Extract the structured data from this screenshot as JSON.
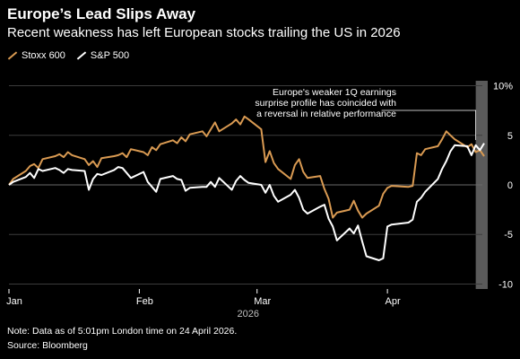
{
  "title": "Europe’s Lead Slips Away",
  "subtitle": "Recent weakness has left European stocks trailing the US in 2026",
  "note": "Note: Data as of 5:01pm London time on 24 April 2026.",
  "source": "Source: Bloomberg",
  "annotation": "Europe's weaker 1Q earnings surprise profile has coincided with a reversal in relative performance",
  "colors": {
    "stoxx": "#d99a52",
    "sp500": "#ffffff",
    "background": "#000000",
    "grid": "#3c3c3c",
    "highlight_band": "#5a5a5a"
  },
  "chart_data": {
    "type": "line",
    "title": "Europe’s Lead Slips Away",
    "subtitle": "Recent weakness has left European stocks trailing the US in 2026",
    "xlabel": "2026",
    "ylabel": "",
    "ylim": [
      -10.5,
      10.5
    ],
    "y_ticks": [
      {
        "value": 10,
        "label": "10%"
      },
      {
        "value": 5,
        "label": "5"
      },
      {
        "value": 0,
        "label": "0"
      },
      {
        "value": -5,
        "label": "-5"
      },
      {
        "value": -10,
        "label": "-10"
      }
    ],
    "x_ticks": [
      {
        "date": "2026-01-01",
        "label": "Jan"
      },
      {
        "date": "2026-02-01",
        "label": "Feb"
      },
      {
        "date": "2026-03-01",
        "label": "Mar"
      },
      {
        "date": "2026-04-01",
        "label": "Apr"
      }
    ],
    "xlim": [
      "2026-01-01",
      "2026-04-24"
    ],
    "highlight_start": "2026-04-22",
    "legend_position": "top-left",
    "grid": true,
    "series": [
      {
        "name": "Stoxx 600",
        "color": "#d99a52",
        "points": [
          [
            "2026-01-01",
            0
          ],
          [
            "2026-01-02",
            0.6
          ],
          [
            "2026-01-05",
            1.4
          ],
          [
            "2026-01-06",
            1.9
          ],
          [
            "2026-01-07",
            2.1
          ],
          [
            "2026-01-08",
            1.7
          ],
          [
            "2026-01-09",
            2.6
          ],
          [
            "2026-01-12",
            2.9
          ],
          [
            "2026-01-13",
            3.1
          ],
          [
            "2026-01-14",
            2.8
          ],
          [
            "2026-01-15",
            3.3
          ],
          [
            "2026-01-16",
            3.0
          ],
          [
            "2026-01-19",
            2.6
          ],
          [
            "2026-01-20",
            2.0
          ],
          [
            "2026-01-21",
            2.4
          ],
          [
            "2026-01-22",
            1.8
          ],
          [
            "2026-01-23",
            2.7
          ],
          [
            "2026-01-26",
            2.9
          ],
          [
            "2026-01-27",
            3.0
          ],
          [
            "2026-01-28",
            3.2
          ],
          [
            "2026-01-29",
            2.8
          ],
          [
            "2026-01-30",
            3.6
          ],
          [
            "2026-02-02",
            3.3
          ],
          [
            "2026-02-03",
            3.0
          ],
          [
            "2026-02-04",
            3.8
          ],
          [
            "2026-02-05",
            3.5
          ],
          [
            "2026-02-06",
            4.1
          ],
          [
            "2026-02-09",
            4.5
          ],
          [
            "2026-02-10",
            4.2
          ],
          [
            "2026-02-11",
            4.8
          ],
          [
            "2026-02-12",
            4.4
          ],
          [
            "2026-02-13",
            5.1
          ],
          [
            "2026-02-16",
            5.4
          ],
          [
            "2026-02-17",
            4.9
          ],
          [
            "2026-02-18",
            5.6
          ],
          [
            "2026-02-19",
            6.3
          ],
          [
            "2026-02-20",
            5.4
          ],
          [
            "2026-02-23",
            6.2
          ],
          [
            "2026-02-24",
            6.6
          ],
          [
            "2026-02-25",
            6.1
          ],
          [
            "2026-02-26",
            6.9
          ],
          [
            "2026-02-27",
            6.6
          ],
          [
            "2026-03-02",
            5.6
          ],
          [
            "2026-03-03",
            2.3
          ],
          [
            "2026-03-04",
            3.4
          ],
          [
            "2026-03-05",
            2.2
          ],
          [
            "2026-03-06",
            1.6
          ],
          [
            "2026-03-09",
            0.6
          ],
          [
            "2026-03-10",
            2.0
          ],
          [
            "2026-03-11",
            2.6
          ],
          [
            "2026-03-12",
            1.3
          ],
          [
            "2026-03-13",
            0.7
          ],
          [
            "2026-03-16",
            0.9
          ],
          [
            "2026-03-17",
            -0.4
          ],
          [
            "2026-03-18",
            -1.4
          ],
          [
            "2026-03-19",
            -3.3
          ],
          [
            "2026-03-20",
            -2.8
          ],
          [
            "2026-03-23",
            -2.5
          ],
          [
            "2026-03-24",
            -1.6
          ],
          [
            "2026-03-25",
            -2.6
          ],
          [
            "2026-03-26",
            -3.3
          ],
          [
            "2026-03-27",
            -2.9
          ],
          [
            "2026-03-30",
            -2.1
          ],
          [
            "2026-03-31",
            -0.9
          ],
          [
            "2026-04-01",
            -0.3
          ],
          [
            "2026-04-02",
            -0.1
          ],
          [
            "2026-04-06",
            -0.2
          ],
          [
            "2026-04-07",
            -0.1
          ],
          [
            "2026-04-08",
            3.2
          ],
          [
            "2026-04-09",
            3.0
          ],
          [
            "2026-04-10",
            3.6
          ],
          [
            "2026-04-13",
            3.9
          ],
          [
            "2026-04-14",
            4.6
          ],
          [
            "2026-04-15",
            5.4
          ],
          [
            "2026-04-16",
            5.0
          ],
          [
            "2026-04-17",
            4.6
          ],
          [
            "2026-04-20",
            3.8
          ],
          [
            "2026-04-21",
            4.1
          ],
          [
            "2026-04-22",
            3.3
          ],
          [
            "2026-04-23",
            3.5
          ],
          [
            "2026-04-24",
            2.9
          ]
        ]
      },
      {
        "name": "S&P 500",
        "color": "#ffffff",
        "points": [
          [
            "2026-01-01",
            0
          ],
          [
            "2026-01-02",
            0.3
          ],
          [
            "2026-01-05",
            0.8
          ],
          [
            "2026-01-06",
            1.2
          ],
          [
            "2026-01-07",
            0.7
          ],
          [
            "2026-01-08",
            1.6
          ],
          [
            "2026-01-09",
            1.4
          ],
          [
            "2026-01-12",
            1.7
          ],
          [
            "2026-01-13",
            1.5
          ],
          [
            "2026-01-14",
            1.2
          ],
          [
            "2026-01-15",
            1.6
          ],
          [
            "2026-01-16",
            1.5
          ],
          [
            "2026-01-19",
            1.4
          ],
          [
            "2026-01-20",
            -0.5
          ],
          [
            "2026-01-21",
            0.6
          ],
          [
            "2026-01-22",
            1.1
          ],
          [
            "2026-01-23",
            1.0
          ],
          [
            "2026-01-26",
            1.5
          ],
          [
            "2026-01-27",
            1.8
          ],
          [
            "2026-01-28",
            1.7
          ],
          [
            "2026-01-29",
            1.2
          ],
          [
            "2026-01-30",
            0.7
          ],
          [
            "2026-02-02",
            1.3
          ],
          [
            "2026-02-03",
            0.3
          ],
          [
            "2026-02-04",
            -0.2
          ],
          [
            "2026-02-05",
            -0.7
          ],
          [
            "2026-02-06",
            0.6
          ],
          [
            "2026-02-09",
            0.9
          ],
          [
            "2026-02-10",
            0.6
          ],
          [
            "2026-02-11",
            0.5
          ],
          [
            "2026-02-12",
            -0.6
          ],
          [
            "2026-02-13",
            -0.3
          ],
          [
            "2026-02-16",
            -0.2
          ],
          [
            "2026-02-17",
            -0.2
          ],
          [
            "2026-02-18",
            0.3
          ],
          [
            "2026-02-19",
            -0.2
          ],
          [
            "2026-02-20",
            0.7
          ],
          [
            "2026-02-23",
            -0.5
          ],
          [
            "2026-02-24",
            0.4
          ],
          [
            "2026-02-25",
            0.9
          ],
          [
            "2026-02-26",
            0.5
          ],
          [
            "2026-02-27",
            0.2
          ],
          [
            "2026-03-02",
            0.0
          ],
          [
            "2026-03-03",
            -0.8
          ],
          [
            "2026-03-04",
            0.0
          ],
          [
            "2026-03-05",
            -1.1
          ],
          [
            "2026-03-06",
            -1.7
          ],
          [
            "2026-03-09",
            -1.0
          ],
          [
            "2026-03-10",
            -0.5
          ],
          [
            "2026-03-11",
            -1.3
          ],
          [
            "2026-03-12",
            -2.5
          ],
          [
            "2026-03-13",
            -2.9
          ],
          [
            "2026-03-16",
            -2.2
          ],
          [
            "2026-03-17",
            -2.0
          ],
          [
            "2026-03-18",
            -3.4
          ],
          [
            "2026-03-19",
            -4.2
          ],
          [
            "2026-03-20",
            -5.6
          ],
          [
            "2026-03-23",
            -4.4
          ],
          [
            "2026-03-24",
            -4.9
          ],
          [
            "2026-03-25",
            -4.1
          ],
          [
            "2026-03-26",
            -5.7
          ],
          [
            "2026-03-27",
            -7.2
          ],
          [
            "2026-03-30",
            -7.6
          ],
          [
            "2026-03-31",
            -7.4
          ],
          [
            "2026-04-01",
            -4.2
          ],
          [
            "2026-04-02",
            -4.0
          ],
          [
            "2026-04-06",
            -3.8
          ],
          [
            "2026-04-07",
            -3.5
          ],
          [
            "2026-04-08",
            -1.7
          ],
          [
            "2026-04-09",
            -1.3
          ],
          [
            "2026-04-10",
            -0.7
          ],
          [
            "2026-04-13",
            0.6
          ],
          [
            "2026-04-14",
            1.6
          ],
          [
            "2026-04-15",
            2.4
          ],
          [
            "2026-04-16",
            3.4
          ],
          [
            "2026-04-17",
            4.0
          ],
          [
            "2026-04-20",
            3.9
          ],
          [
            "2026-04-21",
            3.0
          ],
          [
            "2026-04-22",
            4.0
          ],
          [
            "2026-04-23",
            3.5
          ],
          [
            "2026-04-24",
            4.2
          ]
        ]
      }
    ]
  }
}
